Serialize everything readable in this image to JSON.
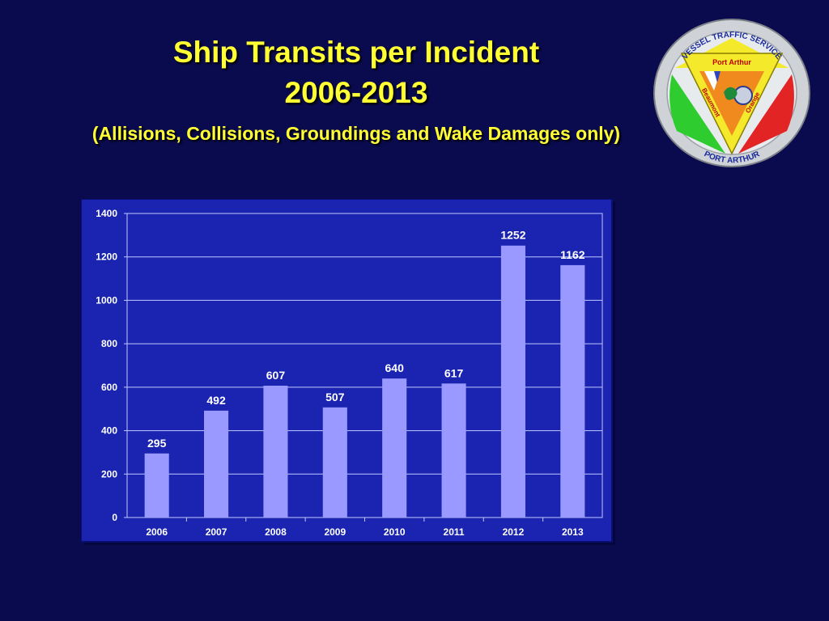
{
  "header": {
    "title": "Ship Transits per Incident",
    "years": "2006-2013",
    "subtitle": "(Allisions, Collisions, Groundings and Wake Damages only)"
  },
  "logo": {
    "ring_top": "VESSEL TRAFFIC SERVICE",
    "ring_bottom": "PORT ARTHUR",
    "banner": "Port Arthur",
    "left_side": "Beaumont",
    "right_side": "Orange"
  },
  "colors": {
    "background": "#0a0a4e",
    "title": "#ffff33",
    "plot_area": "#1a24b0",
    "bar": "#9999ff",
    "logo_yellow": "#f4e92a",
    "logo_green": "#2ecc2e",
    "logo_red": "#e32424",
    "logo_orange": "#f08a1e"
  },
  "chart_data": {
    "type": "bar",
    "categories": [
      "2006",
      "2007",
      "2008",
      "2009",
      "2010",
      "2011",
      "2012",
      "2013"
    ],
    "values": [
      295,
      492,
      607,
      507,
      640,
      617,
      1252,
      1162
    ],
    "ylim": [
      0,
      1400
    ],
    "yticks": [
      0,
      200,
      400,
      600,
      800,
      1000,
      1200,
      1400
    ],
    "grid": true,
    "legend": "none"
  }
}
